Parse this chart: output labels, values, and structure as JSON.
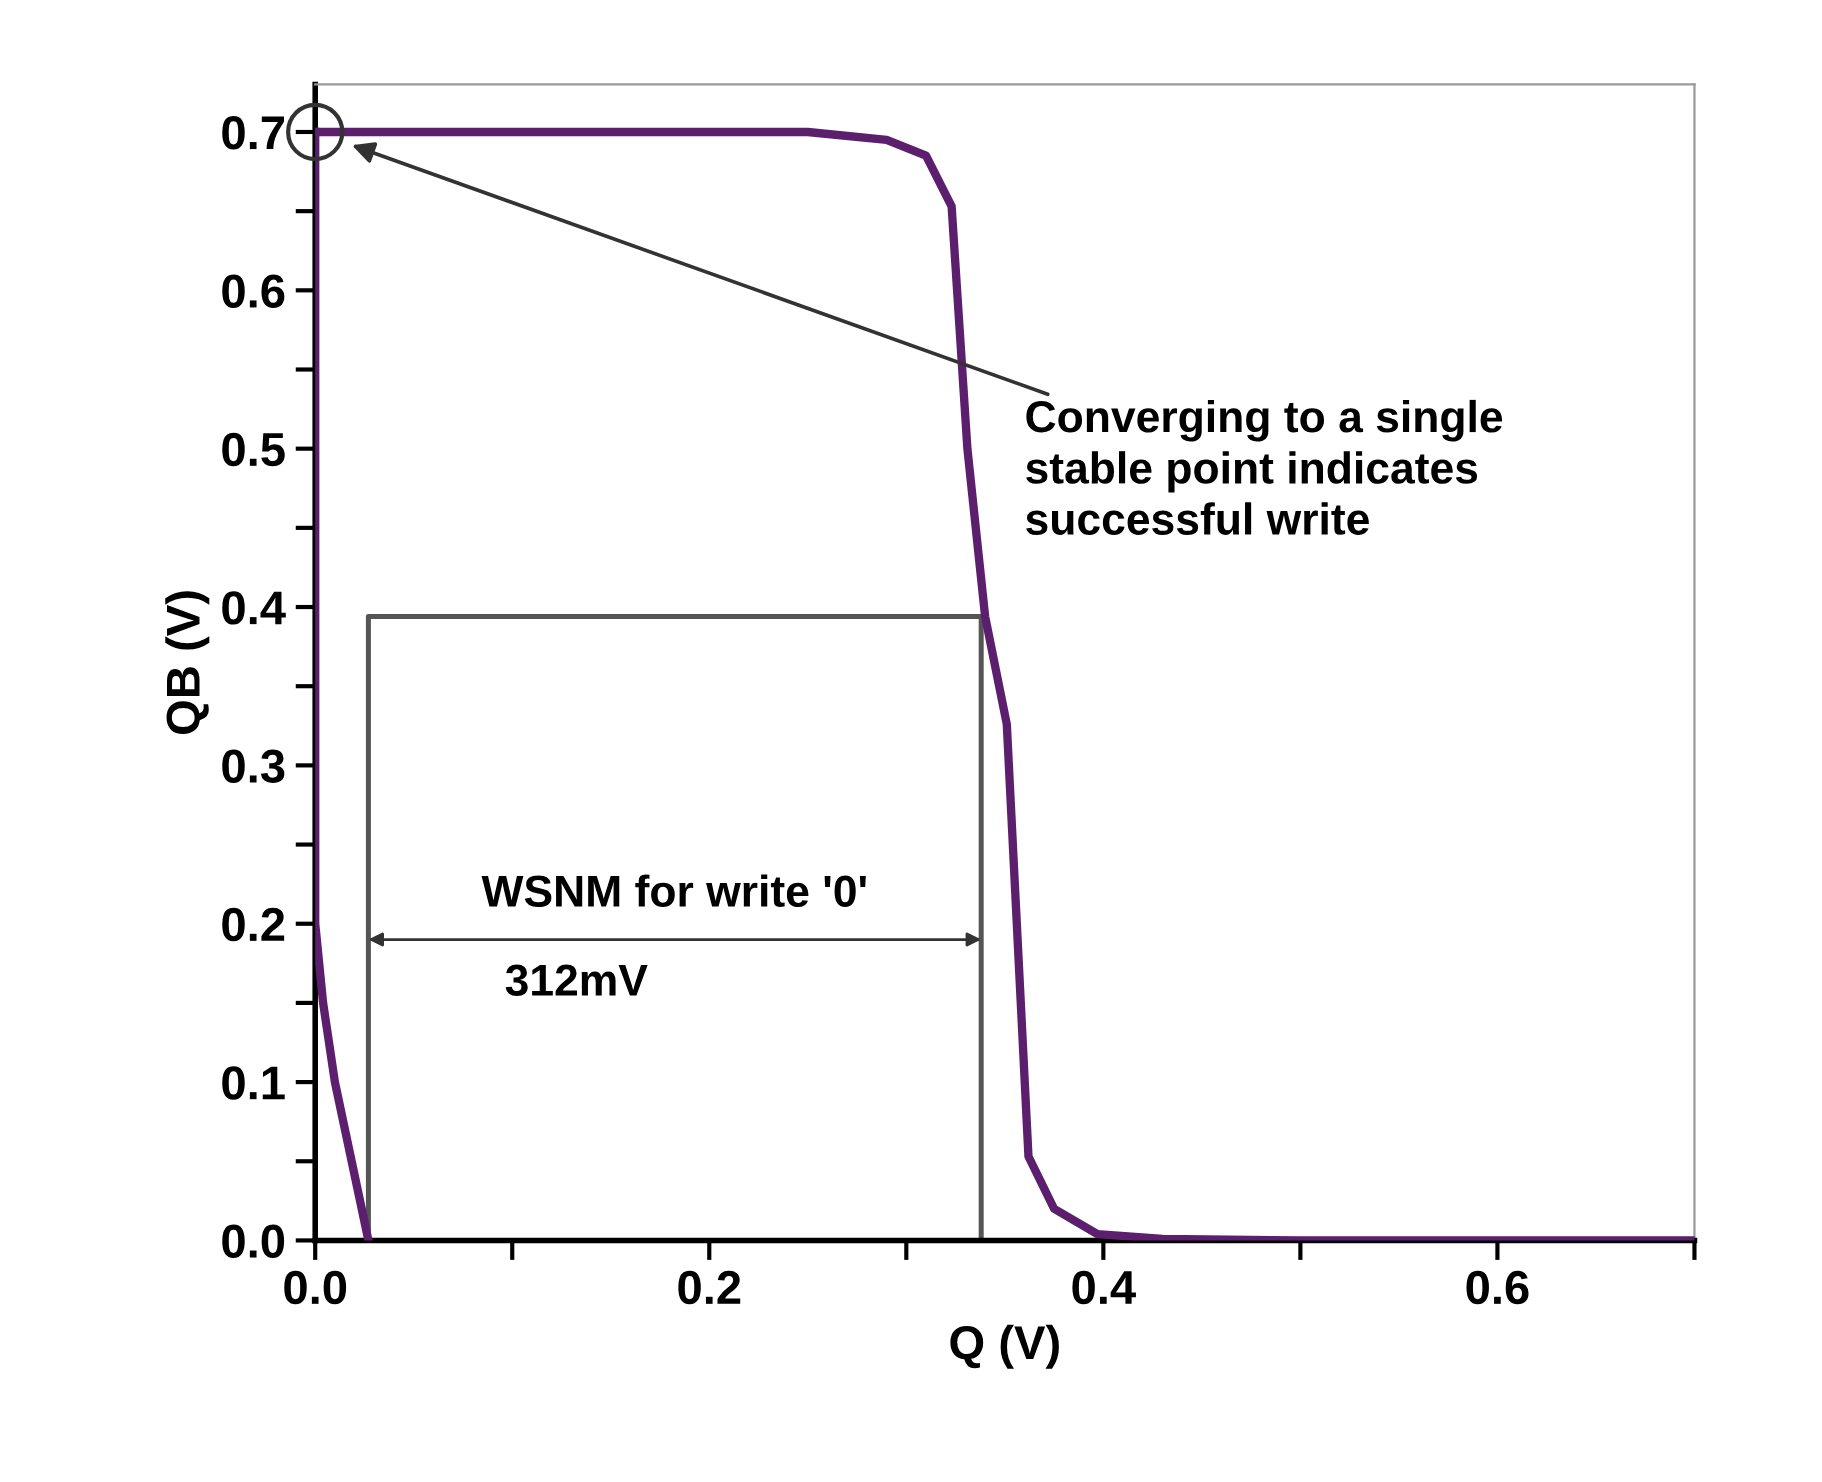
{
  "chart_data": {
    "type": "line",
    "xlabel": "Q (V)",
    "ylabel": "QB (V)",
    "xlim": [
      0,
      0.7
    ],
    "ylim": [
      0,
      0.73
    ],
    "xticks": [
      {
        "value": 0,
        "label": "0.0"
      },
      {
        "value": 0.1,
        "label": null
      },
      0.2,
      {
        "value": 0.3,
        "label": null
      },
      0.4,
      {
        "value": 0.5,
        "label": null
      },
      0.6,
      {
        "value": 0.7,
        "label": null
      }
    ],
    "yticks": [
      {
        "value": 0,
        "label": "0.0"
      },
      {
        "value": 0.05,
        "label": null
      },
      0.1,
      {
        "value": 0.15,
        "label": null
      },
      0.2,
      {
        "value": 0.25,
        "label": null
      },
      0.3,
      {
        "value": 0.35,
        "label": null
      },
      0.4,
      {
        "value": 0.45,
        "label": null
      },
      0.5,
      {
        "value": 0.55,
        "label": null
      },
      0.6,
      {
        "value": 0.65,
        "label": null
      },
      0.7
    ],
    "grid": false,
    "legend": false,
    "series": [
      {
        "color": "#5b1f6e",
        "x": [
          0,
          0,
          0.004,
          0.01,
          0.027
        ],
        "values": [
          0.7,
          0.2,
          0.15,
          0.1,
          0
        ]
      },
      {
        "color": "#5b1f6e",
        "x": [
          0,
          0.25,
          0.29,
          0.31,
          0.323,
          0.331,
          0.34,
          0.351,
          0.362,
          0.375,
          0.397,
          0.43,
          0.5,
          0.7
        ],
        "values": [
          0.7,
          0.7,
          0.695,
          0.685,
          0.653,
          0.5,
          0.394,
          0.326,
          0.053,
          0.02,
          0.004,
          0.001,
          0,
          0
        ]
      },
      {
        "color": "#555555",
        "x": [
          0.027,
          0.027,
          0.338,
          0.338
        ],
        "values": [
          0,
          0.394,
          0.394,
          0
        ]
      },
      {
        "type": "scatter",
        "marker": "circle",
        "color": "#333333",
        "x": [
          0
        ],
        "values": [
          0.7
        ]
      }
    ],
    "annotations": [
      "Converging to a single\nstable point indicates\nsuccessful write",
      "WSNM for write '0'",
      "312mV"
    ]
  }
}
